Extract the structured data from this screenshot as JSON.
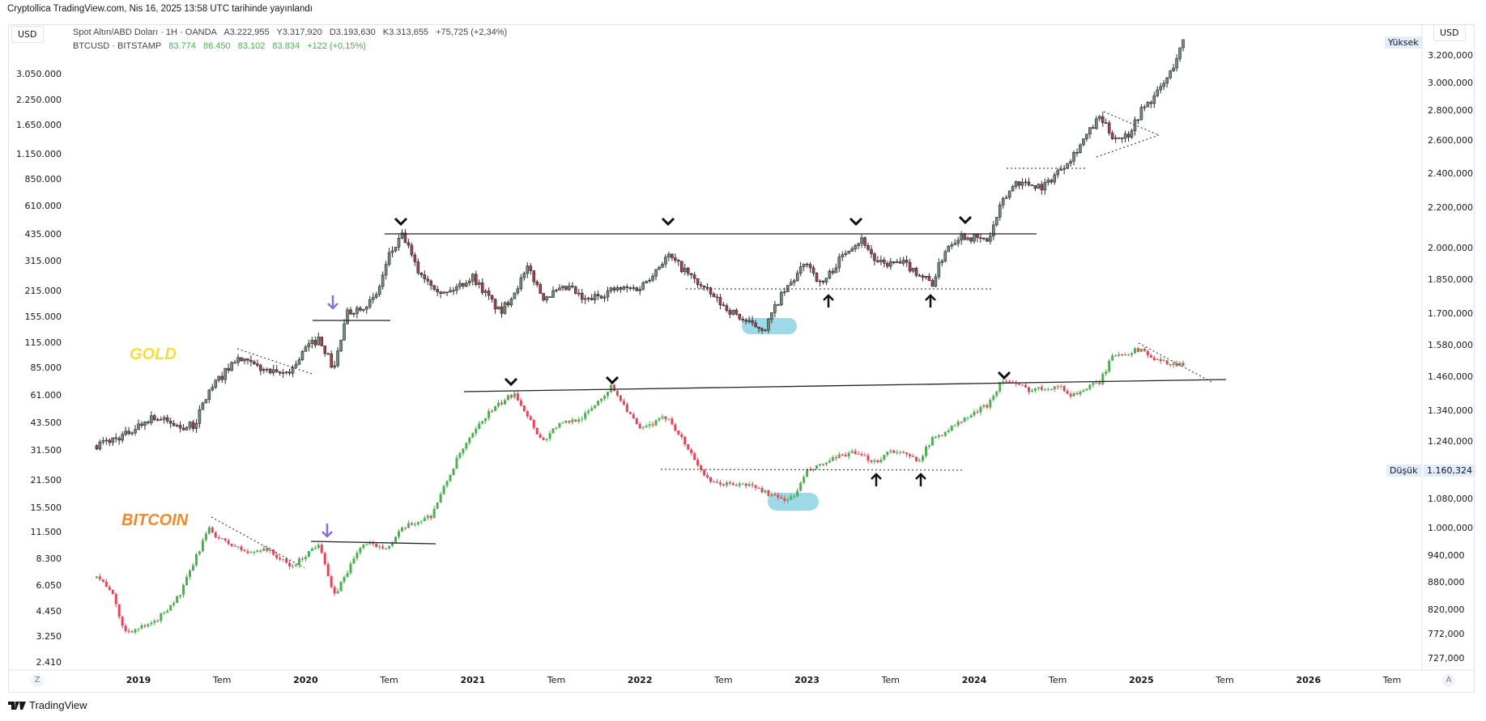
{
  "published": "Cryptollica TradingView.com, Nis 16, 2025 13:58 UTC tarihinde yayınlandı",
  "currency_left": "USD",
  "currency_right": "USD",
  "legend": {
    "gold": {
      "name": "Spot Altın/ABD Doları · 1H · OANDA",
      "open": "A3.222,955",
      "high": "Y3.317,920",
      "low": "D3.193,630",
      "close": "K3.313,655",
      "change": "+75,725 (+2,34%)"
    },
    "btc": {
      "name": "BTCUSD · BITSTAMP",
      "open": "83.774",
      "high": "86.450",
      "low": "83.102",
      "close": "83.834",
      "change": "+122 (+0,15%)"
    }
  },
  "badges": {
    "high_label": "Yüksek",
    "low_label": "Düşük",
    "low_value": "1.160,324"
  },
  "annotations": {
    "gold_label": "GOLD",
    "bitcoin_label": "BITCOIN",
    "gold_color": "#f2df3a",
    "bitcoin_color": "#ef8a2a",
    "highlight_color": "#9ed9e8",
    "arrow_purple": "#8e6fd0"
  },
  "branding": {
    "logo_text": "TradingView"
  },
  "chart_data": {
    "type": "candlestick",
    "scale": "log",
    "grid": false,
    "left_axis_ticks": [
      "3.050.000",
      "2.250.000",
      "1.650.000",
      "1.150.000",
      "850.000",
      "610.000",
      "435.000",
      "315.000",
      "215.000",
      "155.000",
      "115.000",
      "85.000",
      "61.000",
      "43.500",
      "31.500",
      "21.500",
      "15.500",
      "11.500",
      "8.300",
      "6.050",
      "4.450",
      "3.250",
      "2.410"
    ],
    "right_axis_ticks": [
      "3.200,000",
      "3.000,000",
      "2.800,000",
      "2.600,000",
      "2.400,000",
      "2.200,000",
      "2.000,000",
      "1.850,000",
      "1.700,000",
      "1.580,000",
      "1.460,000",
      "1.340,000",
      "1.240,000",
      "1.080,000",
      "1.000,000",
      "940,000",
      "880,000",
      "820,000",
      "772,000",
      "727,000"
    ],
    "x_axis_ticks": [
      "2019",
      "Tem",
      "2020",
      "Tem",
      "2021",
      "Tem",
      "2022",
      "Tem",
      "2023",
      "Tem",
      "2024",
      "Tem",
      "2025",
      "Tem",
      "2026",
      "Tem"
    ],
    "x_axis_corner_left": "Z",
    "x_axis_corner_right": "A",
    "colors": {
      "gold_up": "#6f8f7a",
      "gold_down": "#a8404f",
      "btc_up": "#4caf50",
      "btc_down": "#e2455a"
    },
    "series": [
      {
        "name": "Spot Altın/ABD Doları",
        "points": [
          [
            "2018-10",
            1230
          ],
          [
            "2018-12",
            1260
          ],
          [
            "2019-02",
            1320
          ],
          [
            "2019-04",
            1285
          ],
          [
            "2019-05",
            1290
          ],
          [
            "2019-06",
            1400
          ],
          [
            "2019-08",
            1520
          ],
          [
            "2019-09",
            1500
          ],
          [
            "2019-11",
            1460
          ],
          [
            "2019-12",
            1480
          ],
          [
            "2020-01",
            1560
          ],
          [
            "2020-02",
            1600
          ],
          [
            "2020-03",
            1480
          ],
          [
            "2020-04",
            1700
          ],
          [
            "2020-06",
            1760
          ],
          [
            "2020-07",
            1960
          ],
          [
            "2020-08",
            2060
          ],
          [
            "2020-09",
            1890
          ],
          [
            "2020-11",
            1780
          ],
          [
            "2021-01",
            1860
          ],
          [
            "2021-03",
            1700
          ],
          [
            "2021-05",
            1900
          ],
          [
            "2021-06",
            1770
          ],
          [
            "2021-08",
            1810
          ],
          [
            "2021-09",
            1750
          ],
          [
            "2021-11",
            1800
          ],
          [
            "2022-01",
            1810
          ],
          [
            "2022-03",
            1960
          ],
          [
            "2022-04",
            1900
          ],
          [
            "2022-05",
            1840
          ],
          [
            "2022-07",
            1730
          ],
          [
            "2022-09",
            1650
          ],
          [
            "2022-10",
            1640
          ],
          [
            "2022-11",
            1760
          ],
          [
            "2023-01",
            1930
          ],
          [
            "2023-02",
            1820
          ],
          [
            "2023-04",
            2000
          ],
          [
            "2023-05",
            2040
          ],
          [
            "2023-06",
            1920
          ],
          [
            "2023-08",
            1920
          ],
          [
            "2023-10",
            1830
          ],
          [
            "2023-11",
            2000
          ],
          [
            "2023-12",
            2060
          ],
          [
            "2024-02",
            2030
          ],
          [
            "2024-03",
            2230
          ],
          [
            "2024-04",
            2350
          ],
          [
            "2024-06",
            2320
          ],
          [
            "2024-08",
            2500
          ],
          [
            "2024-10",
            2750
          ],
          [
            "2024-11",
            2620
          ],
          [
            "2024-12",
            2630
          ],
          [
            "2025-01",
            2800
          ],
          [
            "2025-02",
            2900
          ],
          [
            "2025-03",
            3050
          ],
          [
            "2025-04",
            3310
          ]
        ]
      },
      {
        "name": "BTCUSD",
        "points": [
          [
            "2018-10",
            6500
          ],
          [
            "2018-11",
            5500
          ],
          [
            "2018-12",
            3300
          ],
          [
            "2019-02",
            3600
          ],
          [
            "2019-04",
            5200
          ],
          [
            "2019-06",
            11500
          ],
          [
            "2019-07",
            10000
          ],
          [
            "2019-09",
            8500
          ],
          [
            "2019-10",
            9200
          ],
          [
            "2019-12",
            7200
          ],
          [
            "2020-02",
            9800
          ],
          [
            "2020-03",
            5000
          ],
          [
            "2020-05",
            9500
          ],
          [
            "2020-07",
            9300
          ],
          [
            "2020-08",
            11600
          ],
          [
            "2020-10",
            13500
          ],
          [
            "2020-12",
            28000
          ],
          [
            "2021-02",
            46000
          ],
          [
            "2021-04",
            60000
          ],
          [
            "2021-06",
            33000
          ],
          [
            "2021-07",
            40000
          ],
          [
            "2021-09",
            45000
          ],
          [
            "2021-11",
            65000
          ],
          [
            "2022-01",
            38000
          ],
          [
            "2022-03",
            45000
          ],
          [
            "2022-06",
            20000
          ],
          [
            "2022-09",
            19500
          ],
          [
            "2022-11",
            16500
          ],
          [
            "2022-12",
            16700
          ],
          [
            "2023-01",
            23000
          ],
          [
            "2023-04",
            29000
          ],
          [
            "2023-06",
            26000
          ],
          [
            "2023-07",
            30000
          ],
          [
            "2023-09",
            26500
          ],
          [
            "2023-10",
            34000
          ],
          [
            "2023-12",
            42000
          ],
          [
            "2024-02",
            52000
          ],
          [
            "2024-03",
            70000
          ],
          [
            "2024-05",
            62000
          ],
          [
            "2024-07",
            65000
          ],
          [
            "2024-08",
            58000
          ],
          [
            "2024-10",
            68000
          ],
          [
            "2024-11",
            95000
          ],
          [
            "2024-12",
            97000
          ],
          [
            "2025-01",
            102000
          ],
          [
            "2025-02",
            88000
          ],
          [
            "2025-04",
            84000
          ]
        ]
      }
    ]
  }
}
